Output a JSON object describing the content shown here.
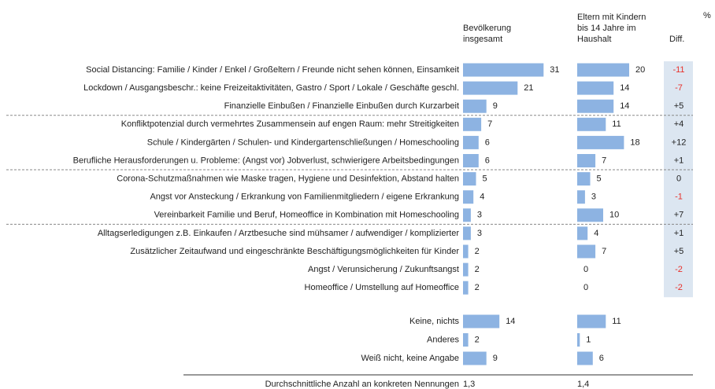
{
  "chart_data": {
    "type": "bar",
    "categories": [
      "Social Distancing: Familie / Kinder / Enkel / Großeltern / Freunde nicht sehen können, Einsamkeit",
      "Lockdown / Ausgangsbeschr.: keine Freizeitaktivitäten, Gastro / Sport / Lokale / Geschäfte geschl.",
      "Finanzielle Einbußen / Finanzielle Einbußen durch Kurzarbeit",
      "Konfliktpotenzial durch vermehrtes Zusammensein auf engen Raum: mehr Streitigkeiten",
      "Schule / Kindergärten / Schulen- und Kindergartenschließungen / Homeschooling",
      "Berufliche Herausforderungen u. Probleme: (Angst vor) Jobverlust, schwierigere Arbeitsbedingungen",
      "Corona-Schutzmaßnahmen wie Maske tragen, Hygiene und Desinfektion, Abstand halten",
      "Angst vor Ansteckung / Erkrankung von Familienmitgliedern / eigene Erkrankung",
      "Vereinbarkeit Familie und Beruf, Homeoffice in Kombination mit Homeschooling",
      "Alltagserledigungen z.B. Einkaufen / Arztbesuche sind mühsamer / aufwendiger / komplizierter",
      "Zusätzlicher Zeitaufwand und eingeschränkte Beschäftigungsmöglichkeiten für Kinder",
      "Angst / Verunsicherung / Zukunftsangst",
      "Homeoffice / Umstellung auf Homeoffice",
      "Keine, nichts",
      "Anderes",
      "Weiß nicht, keine Angabe"
    ],
    "series": [
      {
        "name": "Bevölkerung insgesamt",
        "color": "#8db3e2",
        "values": [
          31,
          21,
          9,
          7,
          6,
          6,
          5,
          4,
          3,
          3,
          2,
          2,
          2,
          14,
          2,
          9
        ]
      },
      {
        "name": "Eltern mit Kindern bis 14 Jahre im Haushalt",
        "color": "#8db3e2",
        "values": [
          20,
          14,
          14,
          11,
          18,
          7,
          5,
          3,
          10,
          4,
          7,
          0,
          0,
          11,
          1,
          6
        ]
      }
    ],
    "unit": "%",
    "diff": {
      "title": "Diff.",
      "values": [
        -11,
        -7,
        5,
        4,
        12,
        1,
        0,
        -1,
        7,
        1,
        5,
        -2,
        -2
      ],
      "value_labels": [
        "-11",
        "-7",
        "+5",
        "+4",
        "+12",
        "+1",
        "0",
        "-1",
        "+7",
        "+1",
        "+5",
        "-2",
        "-2"
      ],
      "negative_color": "#e8302a",
      "color": "#222222",
      "background": "#dce6f1"
    },
    "summary": {
      "label": "Durchschnittliche Anzahl an konkreten Nennungen",
      "values": [
        1.3,
        1.4
      ],
      "value_labels": [
        "1,3",
        "1,4"
      ]
    }
  }
}
